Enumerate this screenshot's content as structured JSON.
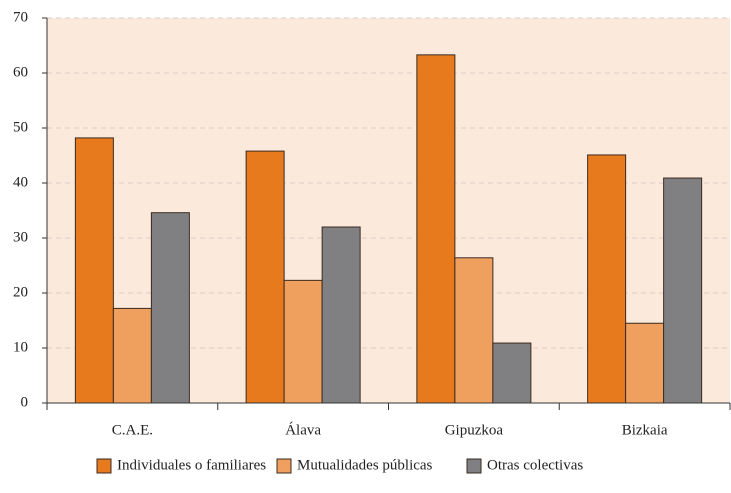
{
  "chart_data": {
    "type": "bar",
    "categories": [
      "C.A.E.",
      "Álava",
      "Gipuzkoa",
      "Bizkaia"
    ],
    "series": [
      {
        "name": "Individuales o familiares",
        "color": "#e87a1e",
        "values": [
          48.2,
          45.8,
          63.3,
          45.1
        ]
      },
      {
        "name": "Mutualidades públicas",
        "color": "#f0a05e",
        "values": [
          17.2,
          22.3,
          26.4,
          14.5
        ]
      },
      {
        "name": "Otras colectivas",
        "color": "#808083",
        "values": [
          34.6,
          32.0,
          10.9,
          40.9
        ]
      }
    ],
    "ylim": [
      0,
      70
    ],
    "yticks": [
      0,
      10,
      20,
      30,
      40,
      50,
      60,
      70
    ],
    "grid": true,
    "legend": "bottom"
  }
}
